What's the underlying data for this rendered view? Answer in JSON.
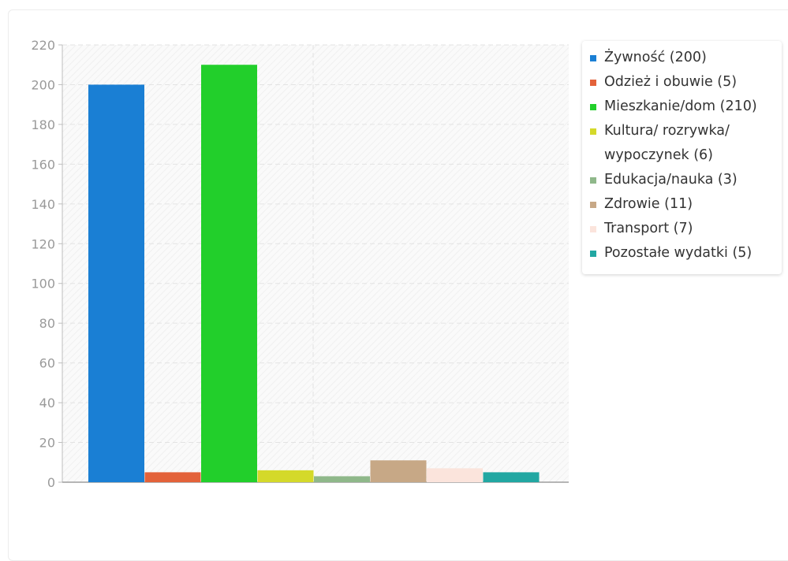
{
  "chart_data": {
    "type": "bar",
    "ylim": [
      0,
      220
    ],
    "yticks": [
      0,
      20,
      40,
      60,
      80,
      100,
      120,
      140,
      160,
      180,
      200,
      220
    ],
    "grid": true,
    "legend_position": "top-right",
    "series": [
      {
        "name": "Żywność (200)",
        "value": 200,
        "color": "#1a7fd4"
      },
      {
        "name": "Odzież i obuwie (5)",
        "value": 5,
        "color": "#e3623a"
      },
      {
        "name": "Mieszkanie/dom (210)",
        "value": 210,
        "color": "#22cf2b"
      },
      {
        "name": "Kultura/ rozrywka/ wypoczynek (6)",
        "value": 6,
        "color": "#d4d92a"
      },
      {
        "name": "Edukacja/nauka (3)",
        "value": 3,
        "color": "#8fb88a"
      },
      {
        "name": "Zdrowie (11)",
        "value": 11,
        "color": "#c7a886"
      },
      {
        "name": "Transport (7)",
        "value": 7,
        "color": "#fbe4dc"
      },
      {
        "name": "Pozostałe wydatki (5)",
        "value": 5,
        "color": "#22a7a2"
      }
    ]
  }
}
